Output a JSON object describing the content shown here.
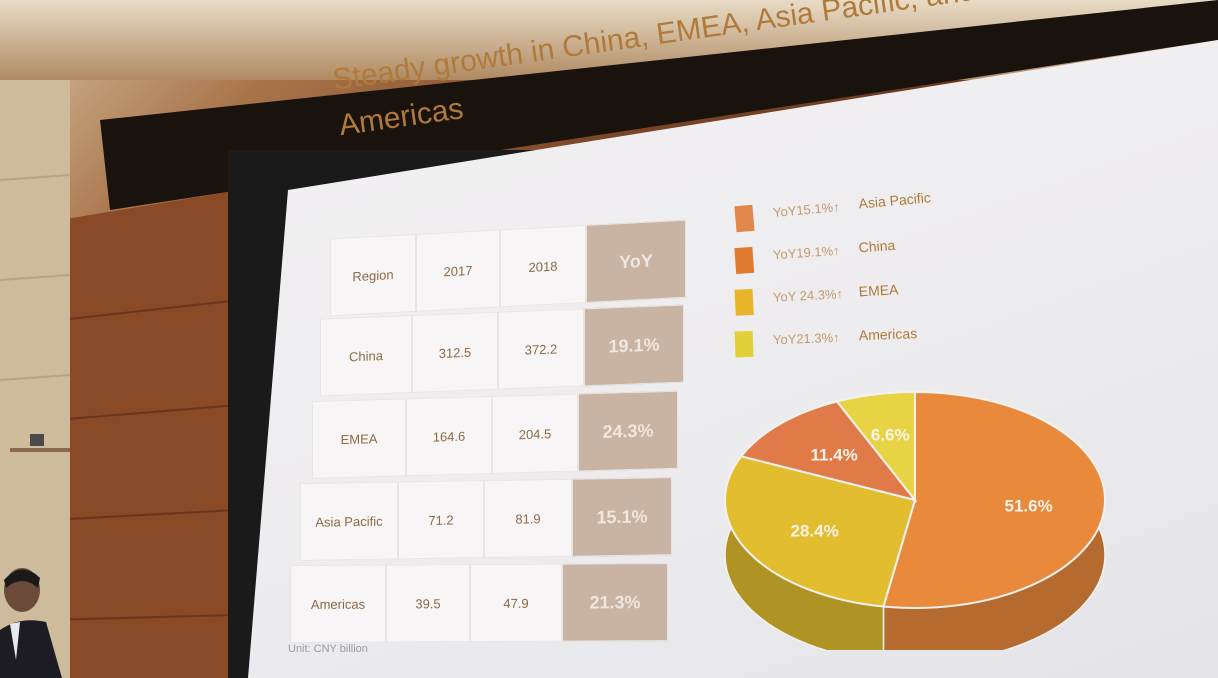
{
  "slide": {
    "title_line1": "Steady growth in China, EMEA, Asia Pacific, and the",
    "title_line2": "Americas",
    "unit_note": "Unit: CNY billion"
  },
  "table": {
    "headers": [
      "Region",
      "2017",
      "2018",
      "YoY"
    ],
    "rows": [
      {
        "region": "China",
        "y2017": "312.5",
        "y2018": "372.2",
        "yoy": "19.1%"
      },
      {
        "region": "EMEA",
        "y2017": "164.6",
        "y2018": "204.5",
        "yoy": "24.3%"
      },
      {
        "region": "Asia Pacific",
        "y2017": "71.2",
        "y2018": "81.9",
        "yoy": "15.1%"
      },
      {
        "region": "Americas",
        "y2017": "39.5",
        "y2018": "47.9",
        "yoy": "21.3%"
      }
    ]
  },
  "legend": [
    {
      "yoy": "YoY15.1%↑",
      "name": "Asia Pacific",
      "color": "#e0874a"
    },
    {
      "yoy": "YoY19.1%↑",
      "name": "China",
      "color": "#e07a30"
    },
    {
      "yoy": "YoY 24.3%↑",
      "name": "EMEA",
      "color": "#e8b52a"
    },
    {
      "yoy": "YoY21.3%↑",
      "name": "Americas",
      "color": "#e2cf3a"
    }
  ],
  "chart_data": {
    "type": "pie",
    "slices": [
      {
        "label": "51.6%",
        "value": 51.6,
        "color": "#e8893c"
      },
      {
        "label": "28.4%",
        "value": 28.4,
        "color": "#e2bd30"
      },
      {
        "label": "11.4%",
        "value": 11.4,
        "color": "#e07a48"
      },
      {
        "label": "6.6%",
        "value": 6.6,
        "color": "#e6d444"
      }
    ]
  }
}
